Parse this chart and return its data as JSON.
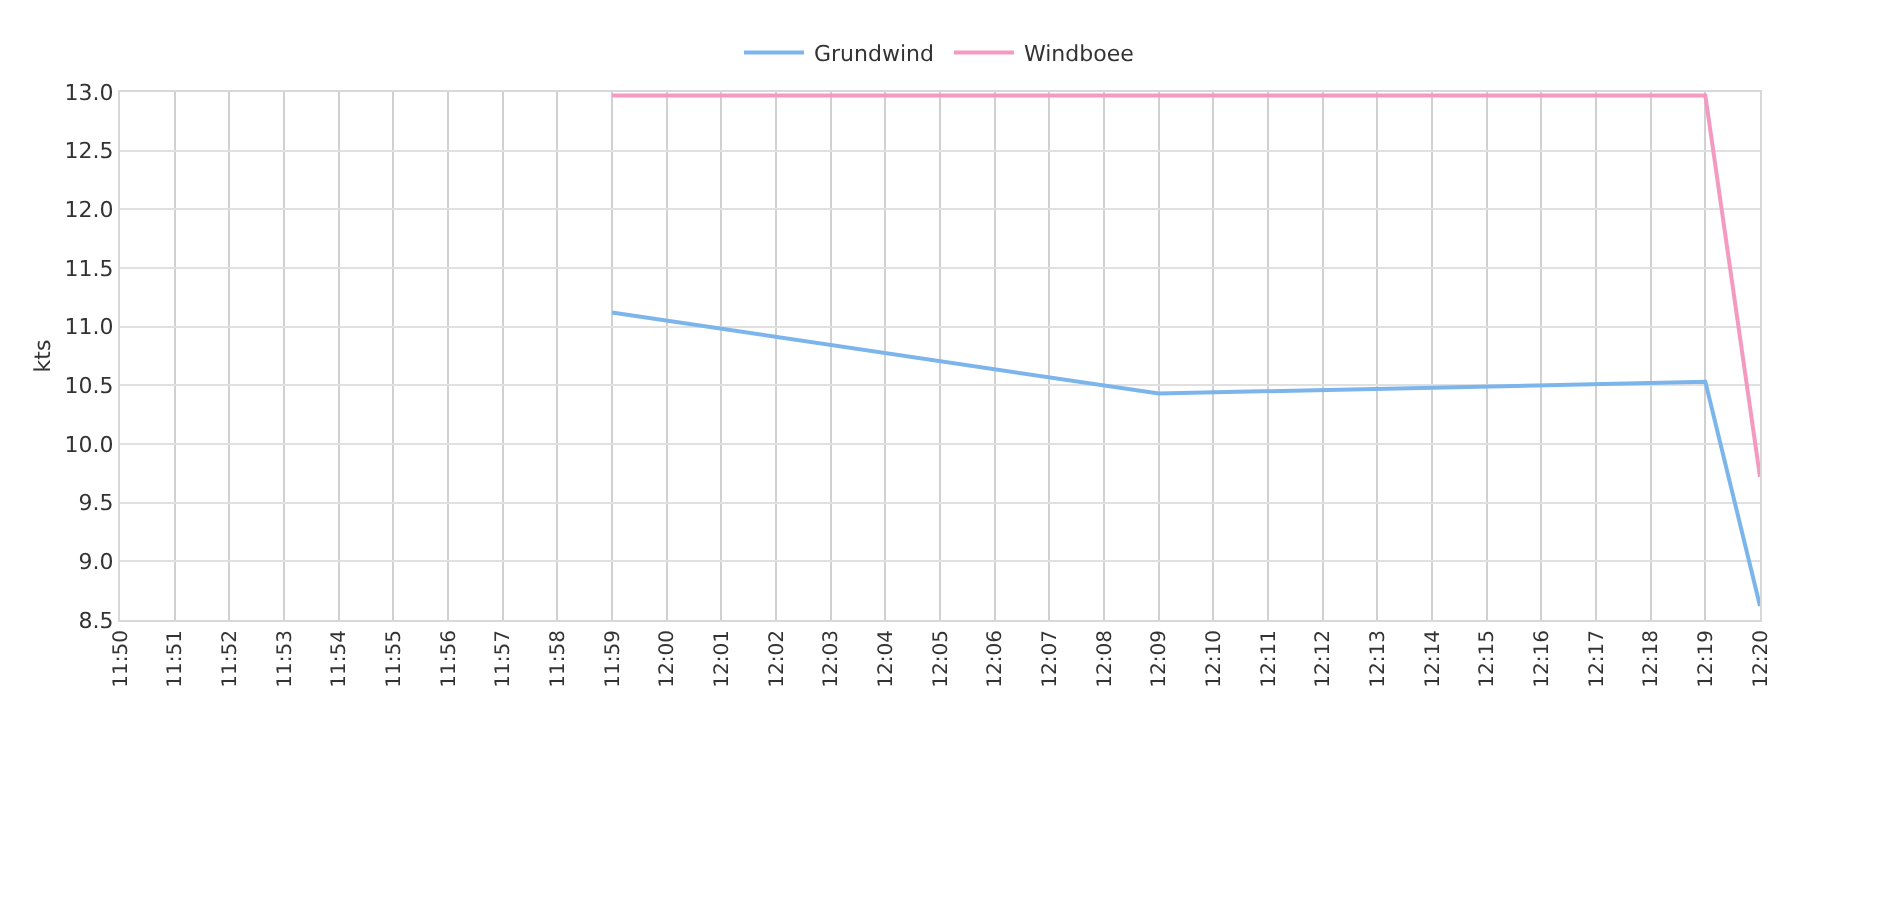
{
  "chart_data": {
    "type": "line",
    "ylabel": "kts",
    "categories": [
      "11:50",
      "11:51",
      "11:52",
      "11:53",
      "11:54",
      "11:55",
      "11:56",
      "11:57",
      "11:58",
      "11:59",
      "12:00",
      "12:01",
      "12:02",
      "12:03",
      "12:04",
      "12:05",
      "12:06",
      "12:07",
      "12:08",
      "12:09",
      "12:10",
      "12:11",
      "12:12",
      "12:13",
      "12:14",
      "12:15",
      "12:16",
      "12:17",
      "12:18",
      "12:19",
      "12:20"
    ],
    "series": [
      {
        "name": "Grundwind",
        "color": "#7cb5ec",
        "x": [
          "11:59",
          "12:09",
          "12:19",
          "12:20"
        ],
        "values": [
          11.12,
          10.43,
          10.53,
          8.62
        ]
      },
      {
        "name": "Windboee",
        "color": "#f49ac1",
        "x": [
          "11:59",
          "12:19",
          "12:20"
        ],
        "values": [
          12.97,
          12.97,
          9.72
        ]
      }
    ],
    "ylim": [
      8.5,
      13
    ],
    "yticks": [
      {
        "value": 8.5,
        "label": "8.5"
      },
      {
        "value": 9,
        "label": "9.0"
      },
      {
        "value": 9.5,
        "label": "9.5"
      },
      {
        "value": 10,
        "label": "10.0"
      },
      {
        "value": 10.5,
        "label": "10.5"
      },
      {
        "value": 11,
        "label": "11.0"
      },
      {
        "value": 11.5,
        "label": "11.5"
      },
      {
        "value": 12,
        "label": "12.0"
      },
      {
        "value": 12.5,
        "label": "12.5"
      },
      {
        "value": 13,
        "label": "13.0"
      }
    ],
    "grid": true,
    "legend": "top",
    "marker": "none",
    "line_style": "solid"
  }
}
